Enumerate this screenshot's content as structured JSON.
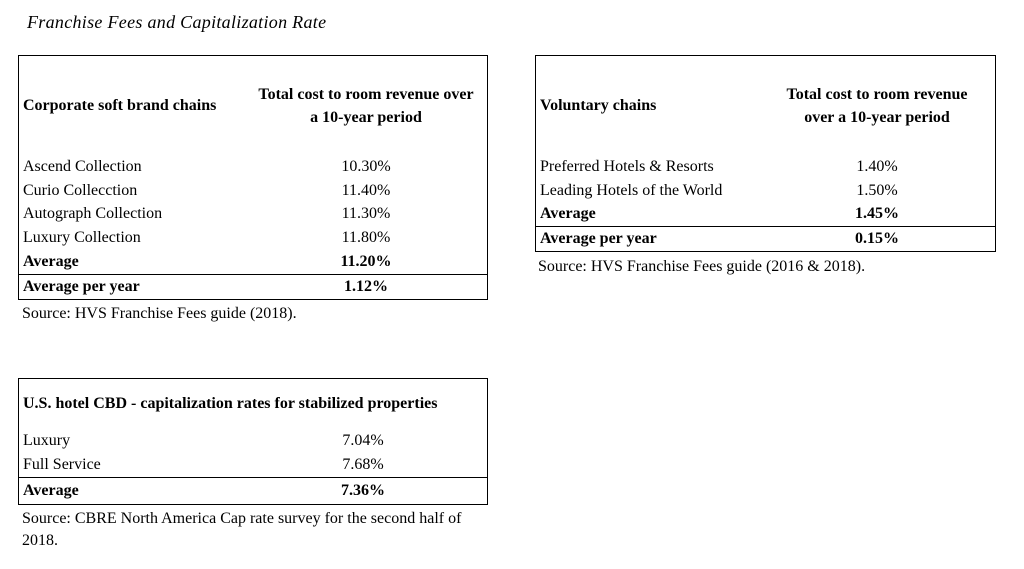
{
  "page": {
    "title": "Franchise Fees and Capitalization Rate",
    "background_color": "#ffffff",
    "text_color": "#000000",
    "border_color": "#000000"
  },
  "tables": [
    {
      "name": "corporate-soft-brand-chains",
      "header": {
        "col1": "Corporate soft brand chains",
        "col2_lines": [
          "Total cost to room revenue over",
          "a 10-year period"
        ]
      },
      "rows": [
        {
          "label": "Ascend Collection",
          "value": "10.30%",
          "bold": false,
          "rule_above": false
        },
        {
          "label": "Curio Collecction",
          "value": "11.40%",
          "bold": false,
          "rule_above": false
        },
        {
          "label": "Autograph Collection",
          "value": "11.30%",
          "bold": false,
          "rule_above": false
        },
        {
          "label": "Luxury Collection",
          "value": "11.80%",
          "bold": false,
          "rule_above": false
        },
        {
          "label": "Average",
          "value": "11.20%",
          "bold": true,
          "rule_above": false
        },
        {
          "label": "Average per year",
          "value": "1.12%",
          "bold": true,
          "rule_above": true
        }
      ],
      "source": "Source: HVS Franchise Fees guide (2018)."
    },
    {
      "name": "voluntary-chains",
      "header": {
        "col1": "Voluntary chains",
        "col2_lines": [
          "Total cost to room revenue",
          "over a 10-year period"
        ]
      },
      "rows": [
        {
          "label": "Preferred Hotels & Resorts",
          "value": "1.40%",
          "bold": false,
          "rule_above": false
        },
        {
          "label": "Leading Hotels of the World",
          "value": "1.50%",
          "bold": false,
          "rule_above": false
        },
        {
          "label": "Average",
          "value": "1.45%",
          "bold": true,
          "rule_above": false
        },
        {
          "label": "Average per year",
          "value": "0.15%",
          "bold": true,
          "rule_above": true
        }
      ],
      "source": "Source: HVS Franchise Fees guide (2016 & 2018)."
    },
    {
      "name": "us-hotel-cbd-cap-rates",
      "header_full": "U.S. hotel CBD - capitalization rates for stabilized properties",
      "rows": [
        {
          "label": "Luxury",
          "value": "7.04%",
          "bold": false,
          "rule_above": false
        },
        {
          "label": "Full Service",
          "value": "7.68%",
          "bold": false,
          "rule_above": false
        },
        {
          "label": "Average",
          "value": "7.36%",
          "bold": true,
          "rule_above": true
        }
      ],
      "source": "Source: CBRE North America Cap rate survey for the second half of 2018."
    }
  ]
}
